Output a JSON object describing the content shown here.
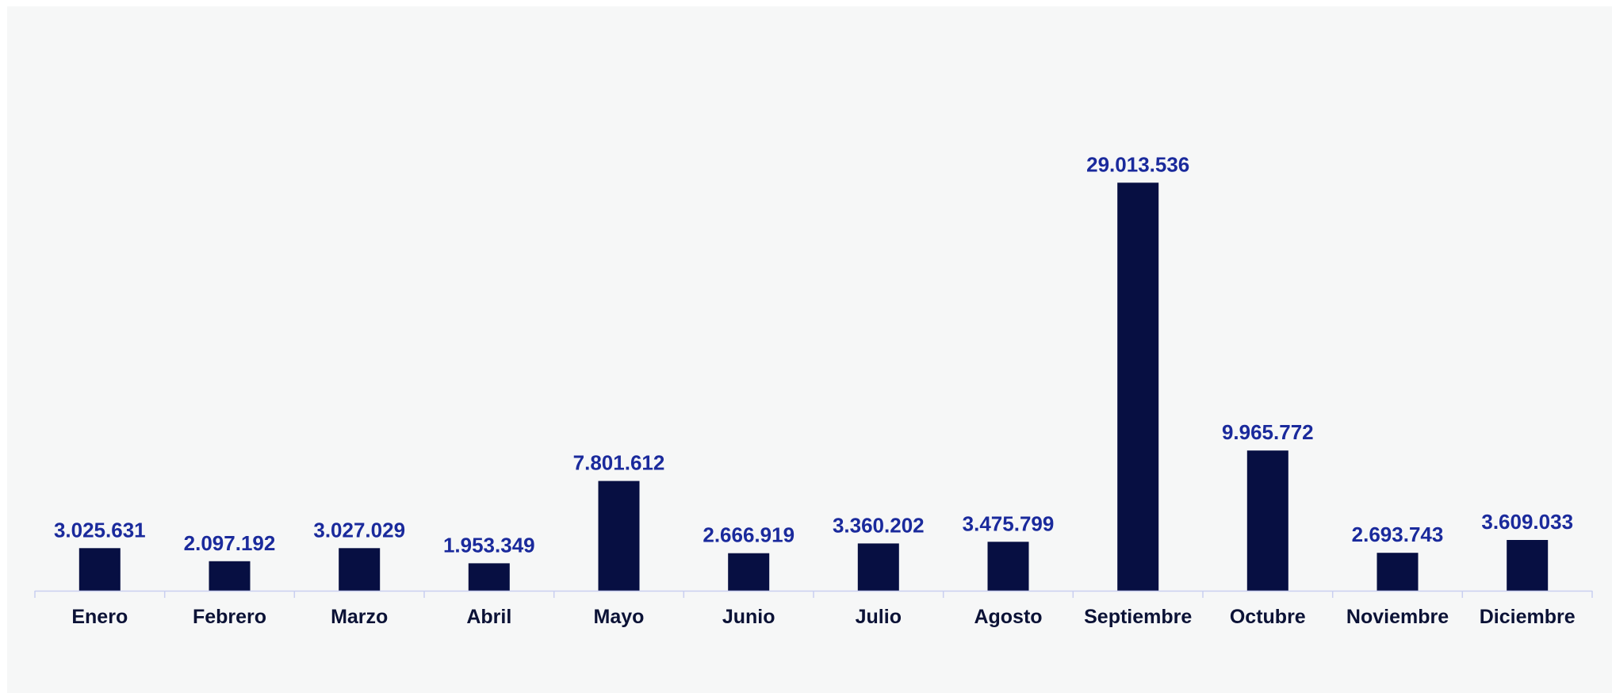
{
  "chart_data": {
    "type": "bar",
    "title": "",
    "xlabel": "",
    "ylabel": "",
    "categories": [
      "Enero",
      "Febrero",
      "Marzo",
      "Abril",
      "Mayo",
      "Junio",
      "Julio",
      "Agosto",
      "Septiembre",
      "Octubre",
      "Noviembre",
      "Diciembre"
    ],
    "values": [
      3025631,
      2097192,
      3027029,
      1953349,
      7801612,
      2666919,
      3360202,
      3475799,
      29013536,
      9965772,
      2693743,
      3609033
    ],
    "value_labels": [
      "3.025.631",
      "2.097.192",
      "3.027.029",
      "1.953.349",
      "7.801.612",
      "2.666.919",
      "3.360.202",
      "3.475.799",
      "29.013.536",
      "9.965.772",
      "2.693.743",
      "3.609.033"
    ],
    "ylim": [
      0,
      42000000
    ],
    "grid": false,
    "legend": "none",
    "colors": {
      "bar": "#070f42",
      "value_label": "#1a2a9c",
      "category_label": "#0b1236",
      "axis": "#c9cff0",
      "background": "#f6f7f7"
    }
  }
}
